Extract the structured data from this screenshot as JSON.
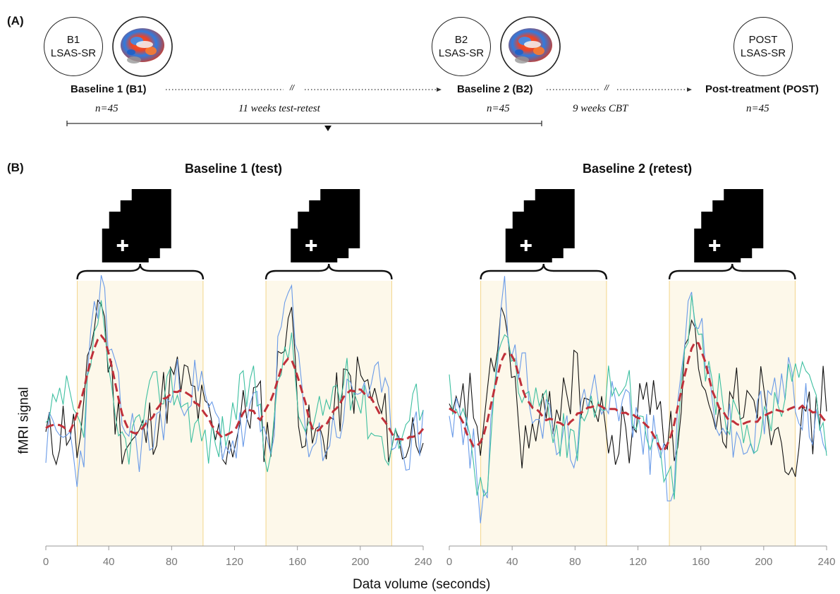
{
  "panel_a": {
    "label": "(A)",
    "circles": [
      {
        "line1": "B1",
        "line2": "LSAS-SR"
      },
      {
        "line1": "B2",
        "line2": "LSAS-SR"
      },
      {
        "line1": "POST",
        "line2": "LSAS-SR"
      }
    ],
    "stages": [
      {
        "name": "Baseline 1 (B1)",
        "n": "n=45"
      },
      {
        "name": "Baseline 2 (B2)",
        "n": "n=45"
      },
      {
        "name": "Post-treatment (POST)",
        "n": "n=45"
      }
    ],
    "intervals": [
      "11 weeks test-retest",
      "9 weeks CBT"
    ],
    "break_mark": "//"
  },
  "panel_b": {
    "label": "(B)",
    "ylabel": "fMRI signal",
    "xlabel": "Data volume (seconds)",
    "colors": {
      "black": "#111111",
      "blue": "#6a9be8",
      "teal": "#3dbfa0",
      "mean": "#c0303a",
      "block": "#fdf8ea",
      "block_edge": "#f3d58a"
    }
  },
  "chart_data": [
    {
      "type": "line",
      "title": "Baseline 1 (test)",
      "xlabel": "Data volume (seconds)",
      "ylabel": "fMRI signal",
      "xlim": [
        0,
        240
      ],
      "x_ticks": [
        "0",
        "40",
        "80",
        "120",
        "160",
        "200",
        "240"
      ],
      "task_blocks": [
        [
          20,
          100
        ],
        [
          140,
          220
        ]
      ],
      "grid": false
    },
    {
      "type": "line",
      "title": "Baseline 2 (retest)",
      "xlabel": "Data volume (seconds)",
      "ylabel": "fMRI signal",
      "xlim": [
        0,
        240
      ],
      "x_ticks": [
        "0",
        "40",
        "80",
        "120",
        "160",
        "200",
        "240"
      ],
      "task_blocks": [
        [
          20,
          100
        ],
        [
          140,
          220
        ]
      ],
      "grid": false
    }
  ]
}
